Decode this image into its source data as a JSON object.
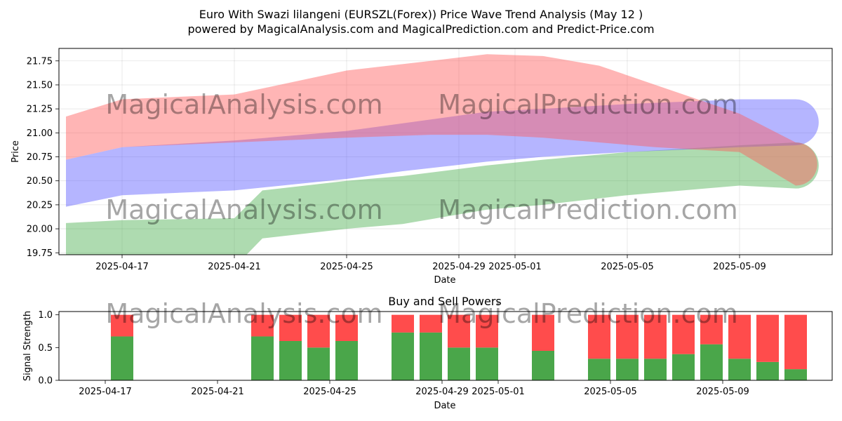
{
  "title_line1": "Euro With Swazi lilangeni (EURSZL(Forex)) Price Wave Trend Analysis (May 12 )",
  "title_line2": "powered by MagicalAnalysis.com and MagicalPrediction.com and Predict-Price.com",
  "watermarks": [
    "MagicalAnalysis.com",
    "MagicalPrediction.com"
  ],
  "colors": {
    "red_band": "#ff5c5c",
    "blue_band": "#5b5bff",
    "green_band": "#4caf50",
    "buy_bar": "#4aa64a",
    "sell_bar": "#ff4c4c"
  },
  "chart_data": [
    {
      "type": "area",
      "title": "",
      "xlabel": "Date",
      "ylabel": "Price",
      "x_ticks": [
        "2025-04-17",
        "2025-04-21",
        "2025-04-25",
        "2025-04-29",
        "2025-05-01",
        "2025-05-05",
        "2025-05-09"
      ],
      "y_ticks": [
        "19.75",
        "20.00",
        "20.25",
        "20.50",
        "20.75",
        "21.00",
        "21.25",
        "21.50",
        "21.75"
      ],
      "ylim": [
        19.73,
        21.88
      ],
      "grid": true,
      "series": [
        {
          "color": "red",
          "x": [
            "2025-04-15",
            "2025-04-17",
            "2025-04-21",
            "2025-04-25",
            "2025-04-28",
            "2025-04-30",
            "2025-05-02",
            "2025-05-04",
            "2025-05-06",
            "2025-05-09",
            "2025-05-11"
          ],
          "upper": [
            21.17,
            21.35,
            21.4,
            21.65,
            21.75,
            21.82,
            21.8,
            21.7,
            21.5,
            21.2,
            20.9
          ],
          "lower": [
            20.72,
            20.85,
            20.9,
            20.95,
            20.98,
            20.98,
            20.95,
            20.9,
            20.85,
            20.8,
            20.45
          ]
        },
        {
          "color": "blue",
          "x": [
            "2025-04-15",
            "2025-04-17",
            "2025-04-21",
            "2025-04-25",
            "2025-04-27",
            "2025-04-30",
            "2025-05-02",
            "2025-05-05",
            "2025-05-09",
            "2025-05-11"
          ],
          "upper": [
            20.72,
            20.85,
            20.92,
            21.02,
            21.1,
            21.22,
            21.25,
            21.3,
            21.35,
            21.35
          ],
          "lower": [
            20.23,
            20.35,
            20.4,
            20.52,
            20.6,
            20.7,
            20.75,
            20.8,
            20.85,
            20.87
          ]
        },
        {
          "color": "green",
          "x": [
            "2025-04-15",
            "2025-04-17",
            "2025-04-21",
            "2025-04-22",
            "2025-04-25",
            "2025-04-27",
            "2025-04-30",
            "2025-05-02",
            "2025-05-05",
            "2025-05-09",
            "2025-05-11"
          ],
          "upper": [
            20.06,
            20.09,
            20.11,
            20.4,
            20.5,
            20.55,
            20.66,
            20.72,
            20.8,
            20.87,
            20.9
          ],
          "lower": [
            19.7,
            19.6,
            19.6,
            19.9,
            20.0,
            20.05,
            20.2,
            20.25,
            20.35,
            20.45,
            20.42
          ]
        }
      ]
    },
    {
      "type": "bar",
      "title": "Buy and Sell Powers",
      "xlabel": "Date",
      "ylabel": "Signal Strength",
      "x_ticks": [
        "2025-04-17",
        "2025-04-21",
        "2025-04-25",
        "2025-04-29",
        "2025-05-01",
        "2025-05-05",
        "2025-05-09"
      ],
      "y_ticks": [
        "0.0",
        "0.5",
        "1.0"
      ],
      "ylim": [
        0,
        1.05
      ],
      "categories": [
        "2025-04-17",
        "2025-04-22",
        "2025-04-23",
        "2025-04-24",
        "2025-04-25",
        "2025-04-27",
        "2025-04-28",
        "2025-04-29",
        "2025-04-30",
        "2025-05-02",
        "2025-05-04",
        "2025-05-05",
        "2025-05-06",
        "2025-05-07",
        "2025-05-08",
        "2025-05-09",
        "2025-05-10",
        "2025-05-11"
      ],
      "series": [
        {
          "name": "buy",
          "values": [
            0.67,
            0.67,
            0.6,
            0.5,
            0.6,
            0.73,
            0.73,
            0.5,
            0.5,
            0.45,
            0.33,
            0.33,
            0.33,
            0.4,
            0.55,
            0.33,
            0.28,
            0.17
          ]
        },
        {
          "name": "sell",
          "values": [
            0.33,
            0.33,
            0.4,
            0.5,
            0.4,
            0.27,
            0.27,
            0.5,
            0.5,
            0.55,
            0.67,
            0.67,
            0.67,
            0.6,
            0.45,
            0.67,
            0.72,
            0.83
          ]
        }
      ]
    }
  ]
}
